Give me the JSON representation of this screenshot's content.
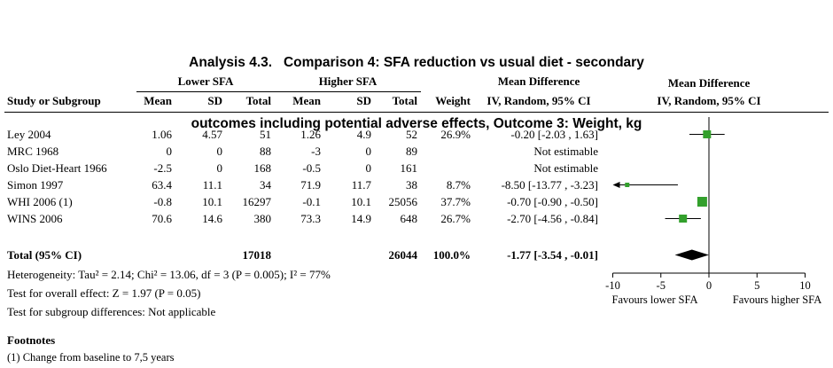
{
  "title": {
    "line1": "Analysis 4.3.   Comparison 4: SFA reduction vs usual diet - secondary",
    "line2": "outcomes including potential adverse effects, Outcome 3: Weight, kg"
  },
  "table": {
    "group_headers": {
      "lower": "Lower SFA",
      "higher": "Higher SFA",
      "md_text": "Mean Difference"
    },
    "columns": [
      "Study or Subgroup",
      "Mean",
      "SD",
      "Total",
      "Mean",
      "SD",
      "Total",
      "Weight",
      "IV, Random, 95% CI"
    ],
    "rows": [
      {
        "study": "Ley 2004",
        "mean1": "1.06",
        "sd1": "4.57",
        "total1": "51",
        "mean2": "1.26",
        "sd2": "4.9",
        "total2": "52",
        "weight": "26.9%",
        "ci": "-0.20 [-2.03 , 1.63]"
      },
      {
        "study": "MRC 1968",
        "mean1": "0",
        "sd1": "0",
        "total1": "88",
        "mean2": "-3",
        "sd2": "0",
        "total2": "89",
        "weight": "",
        "ci": "Not estimable"
      },
      {
        "study": "Oslo Diet-Heart 1966",
        "mean1": "-2.5",
        "sd1": "0",
        "total1": "168",
        "mean2": "-0.5",
        "sd2": "0",
        "total2": "161",
        "weight": "",
        "ci": "Not estimable"
      },
      {
        "study": "Simon 1997",
        "mean1": "63.4",
        "sd1": "11.1",
        "total1": "34",
        "mean2": "71.9",
        "sd2": "11.7",
        "total2": "38",
        "weight": "8.7%",
        "ci": "-8.50 [-13.77 , -3.23]"
      },
      {
        "study": "WHI 2006 (1)",
        "mean1": "-0.8",
        "sd1": "10.1",
        "total1": "16297",
        "mean2": "-0.1",
        "sd2": "10.1",
        "total2": "25056",
        "weight": "37.7%",
        "ci": "-0.70 [-0.90 , -0.50]"
      },
      {
        "study": "WINS 2006",
        "mean1": "70.6",
        "sd1": "14.6",
        "total1": "380",
        "mean2": "73.3",
        "sd2": "14.9",
        "total2": "648",
        "weight": "26.7%",
        "ci": "-2.70 [-4.56 , -0.84]"
      }
    ],
    "total": {
      "label": "Total (95% CI)",
      "total1": "17018",
      "total2": "26044",
      "weight": "100.0%",
      "ci": "-1.77 [-3.54 , -0.01]"
    },
    "stats": [
      "Heterogeneity: Tau² = 2.14; Chi² = 13.06, df = 3 (P = 0.005); I² = 77%",
      "Test for overall effect: Z = 1.97 (P = 0.05)",
      "Test for subgroup differences: Not applicable"
    ]
  },
  "plot": {
    "header_line1": "Mean Difference",
    "header_line2": "IV, Random, 95% CI",
    "square_color": "#33A02C",
    "diamond_color": "#000000"
  },
  "footnotes": {
    "heading": "Footnotes",
    "items": [
      "(1) Change from baseline to 7,5 years"
    ]
  },
  "chart_data": {
    "type": "forest",
    "title": "Analysis 4.3. Comparison 4: SFA reduction vs usual diet - secondary outcomes including potential adverse effects, Outcome 3: Weight, kg",
    "effect_measure": "Mean Difference, IV, Random, 95% CI",
    "x_axis": {
      "min": -10,
      "max": 10,
      "ticks": [
        -10,
        -5,
        0,
        5,
        10
      ],
      "label_left": "Favours lower SFA",
      "label_right": "Favours higher SFA"
    },
    "studies": [
      {
        "name": "Ley 2004",
        "estimate": -0.2,
        "ci_low": -2.03,
        "ci_high": 1.63,
        "weight_pct": 26.9
      },
      {
        "name": "MRC 1968",
        "estimate": null,
        "ci_low": null,
        "ci_high": null,
        "weight_pct": null,
        "note": "Not estimable"
      },
      {
        "name": "Oslo Diet-Heart 1966",
        "estimate": null,
        "ci_low": null,
        "ci_high": null,
        "weight_pct": null,
        "note": "Not estimable"
      },
      {
        "name": "Simon 1997",
        "estimate": -8.5,
        "ci_low": -13.77,
        "ci_high": -3.23,
        "weight_pct": 8.7
      },
      {
        "name": "WHI 2006 (1)",
        "estimate": -0.7,
        "ci_low": -0.9,
        "ci_high": -0.5,
        "weight_pct": 37.7
      },
      {
        "name": "WINS 2006",
        "estimate": -2.7,
        "ci_low": -4.56,
        "ci_high": -0.84,
        "weight_pct": 26.7
      }
    ],
    "total": {
      "estimate": -1.77,
      "ci_low": -3.54,
      "ci_high": -0.01,
      "weight_pct": 100.0
    },
    "heterogeneity": {
      "tau2": 2.14,
      "chi2": 13.06,
      "df": 3,
      "p": 0.005,
      "i2_pct": 77
    },
    "overall_effect": {
      "z": 1.97,
      "p": 0.05
    }
  }
}
